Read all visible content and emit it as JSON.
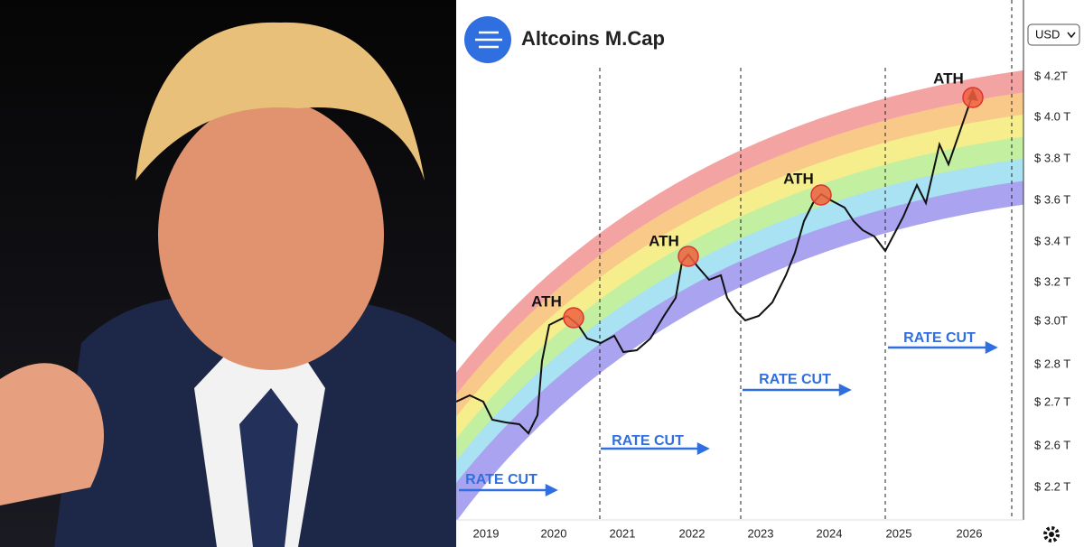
{
  "header": {
    "title": "Altcoins M.Cap",
    "currency": "USD"
  },
  "y_axis": [
    "$ 4.2T",
    "$ 4.0 T",
    "$ 3.8 T",
    "$ 3.6 T",
    "$ 3.4 T",
    "$ 3.2 T",
    "$ 3.0T",
    "$ 2.8 T",
    "$ 2.7 T",
    "$ 2.6 T",
    "$ 2.2 T"
  ],
  "x_axis": [
    "2019",
    "2020",
    "2021",
    "2022",
    "2023",
    "2024",
    "2025",
    "2026"
  ],
  "annotations": {
    "ath": [
      "ATH",
      "ATH",
      "ATH",
      "ATH"
    ],
    "rate_cut": [
      "RATE CUT",
      "RATE CUT",
      "RATE CUT",
      "RATE CUT"
    ]
  }
}
